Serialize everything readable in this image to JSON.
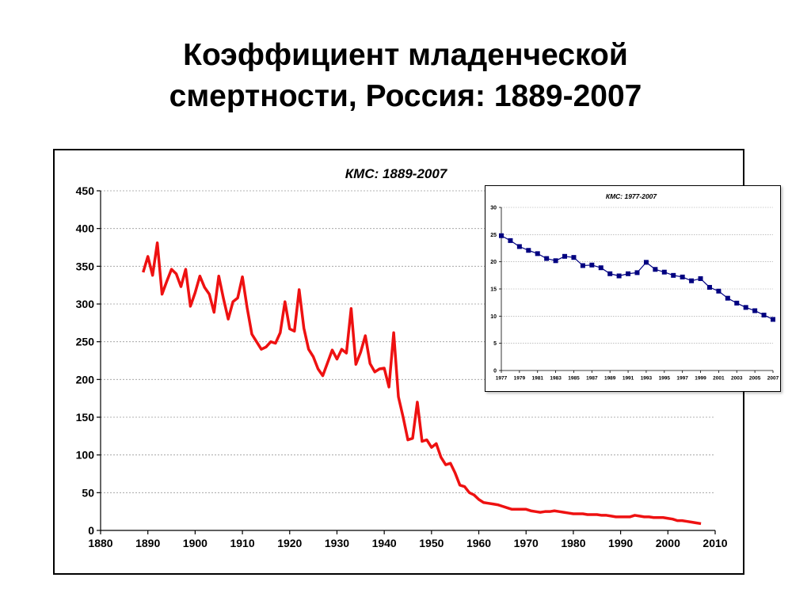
{
  "slide": {
    "title_line1": "Коэффициент младенческой",
    "title_line2": "смертности, Россия: 1889-2007"
  },
  "chart_data": [
    {
      "type": "line",
      "title": "КМС: 1889-2007",
      "xlabel": "",
      "ylabel": "",
      "xlim": [
        1880,
        2010
      ],
      "ylim": [
        0,
        450
      ],
      "x_ticks": [
        1880,
        1890,
        1900,
        1910,
        1920,
        1930,
        1940,
        1950,
        1960,
        1970,
        1980,
        1990,
        2000,
        2010
      ],
      "y_ticks": [
        0,
        50,
        100,
        150,
        200,
        250,
        300,
        350,
        400,
        450
      ],
      "grid": "horizontal",
      "series": [
        {
          "color": "#ee1111",
          "x": [
            1889,
            1890,
            1891,
            1892,
            1893,
            1894,
            1895,
            1896,
            1897,
            1898,
            1899,
            1900,
            1901,
            1902,
            1903,
            1904,
            1905,
            1906,
            1907,
            1908,
            1909,
            1910,
            1911,
            1912,
            1913,
            1914,
            1915,
            1916,
            1917,
            1918,
            1919,
            1920,
            1921,
            1922,
            1923,
            1924,
            1925,
            1926,
            1927,
            1928,
            1929,
            1930,
            1931,
            1932,
            1933,
            1934,
            1935,
            1936,
            1937,
            1938,
            1939,
            1940,
            1941,
            1942,
            1943,
            1944,
            1945,
            1946,
            1947,
            1948,
            1949,
            1950,
            1951,
            1952,
            1953,
            1954,
            1955,
            1956,
            1957,
            1958,
            1959,
            1960,
            1961,
            1962,
            1963,
            1964,
            1965,
            1966,
            1967,
            1968,
            1969,
            1970,
            1971,
            1972,
            1973,
            1974,
            1975,
            1976,
            1977,
            1978,
            1979,
            1980,
            1981,
            1982,
            1983,
            1984,
            1985,
            1986,
            1987,
            1988,
            1989,
            1990,
            1991,
            1992,
            1993,
            1994,
            1995,
            1996,
            1997,
            1998,
            1999,
            2000,
            2001,
            2002,
            2003,
            2004,
            2005,
            2006,
            2007
          ],
          "values": [
            342,
            363,
            338,
            381,
            313,
            330,
            346,
            340,
            323,
            346,
            297,
            315,
            337,
            322,
            313,
            289,
            337,
            307,
            280,
            303,
            308,
            336,
            295,
            260,
            250,
            240,
            243,
            250,
            248,
            262,
            303,
            267,
            264,
            319,
            268,
            240,
            230,
            214,
            205,
            222,
            239,
            227,
            240,
            235,
            294,
            220,
            236,
            258,
            221,
            210,
            214,
            215,
            190,
            262,
            177,
            150,
            120,
            122,
            170,
            118,
            120,
            110,
            115,
            97,
            87,
            89,
            76,
            60,
            58,
            50,
            47,
            41,
            37,
            36,
            35,
            34,
            32,
            30,
            28,
            28,
            28,
            28,
            26,
            25,
            24,
            25,
            25,
            26,
            25,
            24,
            23,
            22,
            22,
            22,
            21,
            21,
            21,
            20,
            20,
            19,
            18,
            18,
            18,
            18,
            20,
            19,
            18,
            18,
            17,
            17,
            17,
            16,
            15,
            13,
            13,
            12,
            11,
            10,
            9
          ]
        }
      ]
    },
    {
      "type": "line",
      "title": "КМС: 1977-2007",
      "xlabel": "",
      "ylabel": "",
      "xlim": [
        1977,
        2007
      ],
      "ylim": [
        0,
        30
      ],
      "x_ticks": [
        1977,
        1979,
        1981,
        1983,
        1985,
        1987,
        1989,
        1991,
        1993,
        1995,
        1997,
        1999,
        2001,
        2003,
        2005,
        2007
      ],
      "y_ticks": [
        0,
        5,
        10,
        15,
        20,
        25,
        30
      ],
      "grid": "horizontal",
      "markers": "square",
      "series": [
        {
          "color": "#000080",
          "x": [
            1977,
            1978,
            1979,
            1980,
            1981,
            1982,
            1983,
            1984,
            1985,
            1986,
            1987,
            1988,
            1989,
            1990,
            1991,
            1992,
            1993,
            1994,
            1995,
            1996,
            1997,
            1998,
            1999,
            2000,
            2001,
            2002,
            2003,
            2004,
            2005,
            2006,
            2007
          ],
          "values": [
            24.8,
            23.9,
            22.8,
            22.1,
            21.5,
            20.6,
            20.2,
            21.0,
            20.8,
            19.3,
            19.4,
            18.9,
            17.8,
            17.4,
            17.8,
            18.0,
            19.9,
            18.6,
            18.1,
            17.5,
            17.2,
            16.5,
            16.9,
            15.3,
            14.6,
            13.3,
            12.4,
            11.6,
            11.0,
            10.2,
            9.4
          ]
        }
      ]
    }
  ]
}
